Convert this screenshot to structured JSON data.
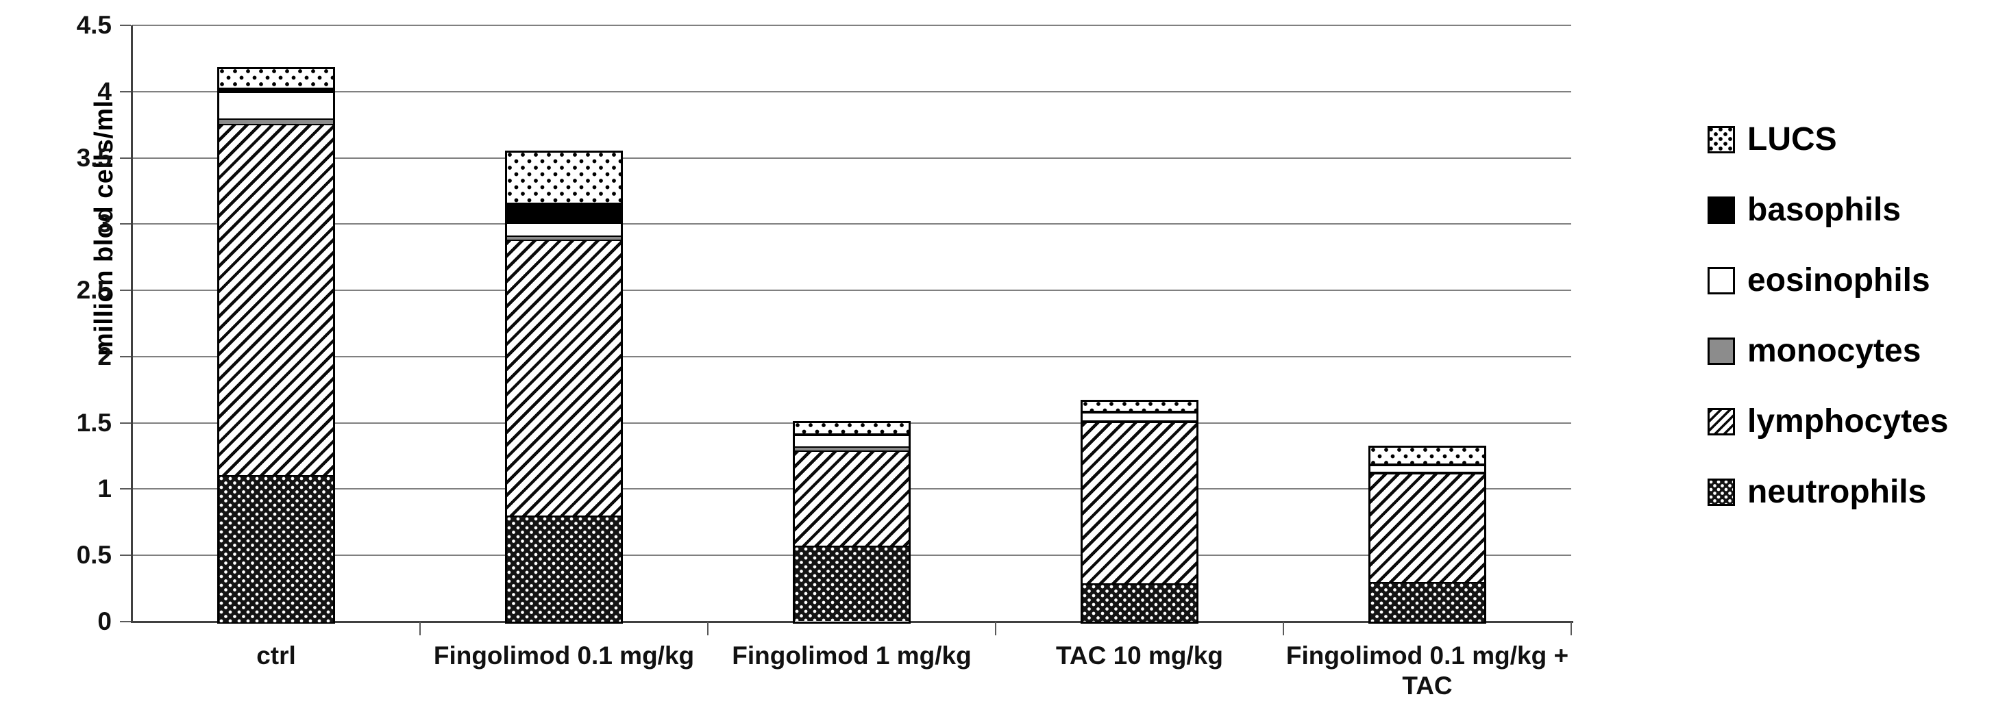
{
  "chart_data": {
    "type": "bar",
    "stacked": true,
    "title": "",
    "ylabel": "million blod cells/ml",
    "xlabel": "",
    "ylim": [
      0,
      4.5
    ],
    "ytick_step": 0.5,
    "ytick_labels": [
      "4.5",
      "4",
      "3.5",
      "3",
      "2.5",
      "2",
      "1.5",
      "1",
      "0.5",
      "0"
    ],
    "grid": true,
    "legend_position": "right",
    "categories": [
      "ctrl",
      "Fingolimod 0.1 mg/kg",
      "Fingolimod 1 mg/kg",
      "TAC 10 mg/kg",
      "Fingolimod 0.1 mg/kg + TAC"
    ],
    "bar_totals": [
      4.17,
      3.54,
      1.5,
      1.66,
      1.31
    ],
    "series": [
      {
        "name": "neutrophils",
        "pattern": "dark-dotted-swatch",
        "values": [
          1.1,
          0.79,
          0.56,
          0.28,
          0.29
        ]
      },
      {
        "name": "lymphocytes",
        "pattern": "diagonal-hatch-swatch",
        "values": [
          2.65,
          2.08,
          0.72,
          1.22,
          0.82
        ]
      },
      {
        "name": "monocytes",
        "pattern": "gray-swatch",
        "values": [
          0.04,
          0.03,
          0.03,
          0.01,
          0.01
        ]
      },
      {
        "name": "eosinophils",
        "pattern": "white-swatch",
        "values": [
          0.2,
          0.1,
          0.09,
          0.06,
          0.05
        ]
      },
      {
        "name": "basophils",
        "pattern": "black-swatch",
        "values": [
          0.03,
          0.15,
          0.01,
          0.01,
          0.01
        ]
      },
      {
        "name": "LUCS",
        "pattern": "light-dotted-swatch",
        "values": [
          0.15,
          0.39,
          0.09,
          0.08,
          0.13
        ]
      }
    ],
    "legend": [
      {
        "label": "LUCS",
        "pattern": "light-dotted-swatch"
      },
      {
        "label": "basophils",
        "pattern": "black-swatch"
      },
      {
        "label": "eosinophils",
        "pattern": "white-swatch"
      },
      {
        "label": "monocytes",
        "pattern": "gray-swatch"
      },
      {
        "label": "lymphocytes",
        "pattern": "diagonal-hatch-swatch"
      },
      {
        "label": "neutrophils",
        "pattern": "dark-dotted-swatch"
      }
    ],
    "colors": {
      "background": "#ffffff",
      "gridline": "#808080",
      "axis": "#404040",
      "text": "#000000",
      "monocyte_fill": "#8c8c8c",
      "basophil_fill": "#000000"
    }
  }
}
